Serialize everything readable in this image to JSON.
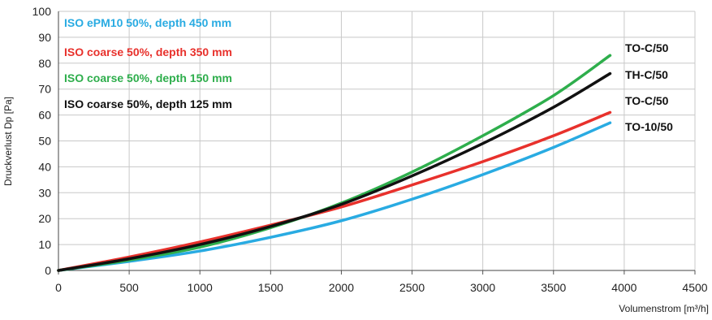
{
  "chart_data": {
    "type": "line",
    "title": "",
    "xlabel": "Volumenstrom [m³/h]",
    "ylabel": "Druckverlust Dp [Pa]",
    "xlim": [
      0,
      4500
    ],
    "ylim": [
      0,
      100
    ],
    "xticks": [
      "0",
      "500",
      "1000",
      "1500",
      "2000",
      "2500",
      "3000",
      "3500",
      "4000",
      "4500"
    ],
    "yticks": [
      "0",
      "10",
      "20",
      "30",
      "40",
      "50",
      "60",
      "70",
      "80",
      "90",
      "100"
    ],
    "grid": true,
    "legend_position": "top-left",
    "x": [
      0,
      500,
      1000,
      1500,
      2000,
      2500,
      3000,
      3500,
      3900
    ],
    "series": [
      {
        "name": "ISO ePM10 50%, depth 450 mm",
        "end_label": "TO-10/50",
        "color": "#29abe2",
        "values": [
          0,
          3.5,
          7.5,
          12.8,
          19.2,
          27.5,
          37,
          47.5,
          57
        ]
      },
      {
        "name": "ISO coarse 50%, depth 350 mm",
        "end_label": "TO-C/50",
        "color": "#e8312c",
        "values": [
          0,
          5.2,
          11,
          17.5,
          24.5,
          33,
          42,
          52,
          61
        ]
      },
      {
        "name": "ISO coarse 50%, depth 150 mm",
        "end_label": "TO-C/50",
        "color": "#2eae4c",
        "values": [
          0,
          4,
          9,
          16.5,
          26,
          38,
          52,
          67.5,
          83
        ]
      },
      {
        "name": "ISO coarse 50%, depth 125 mm",
        "end_label": "TH-C/50",
        "color": "#111111",
        "values": [
          0,
          4.5,
          10,
          17,
          25.5,
          36.5,
          49,
          63,
          76
        ]
      }
    ]
  }
}
